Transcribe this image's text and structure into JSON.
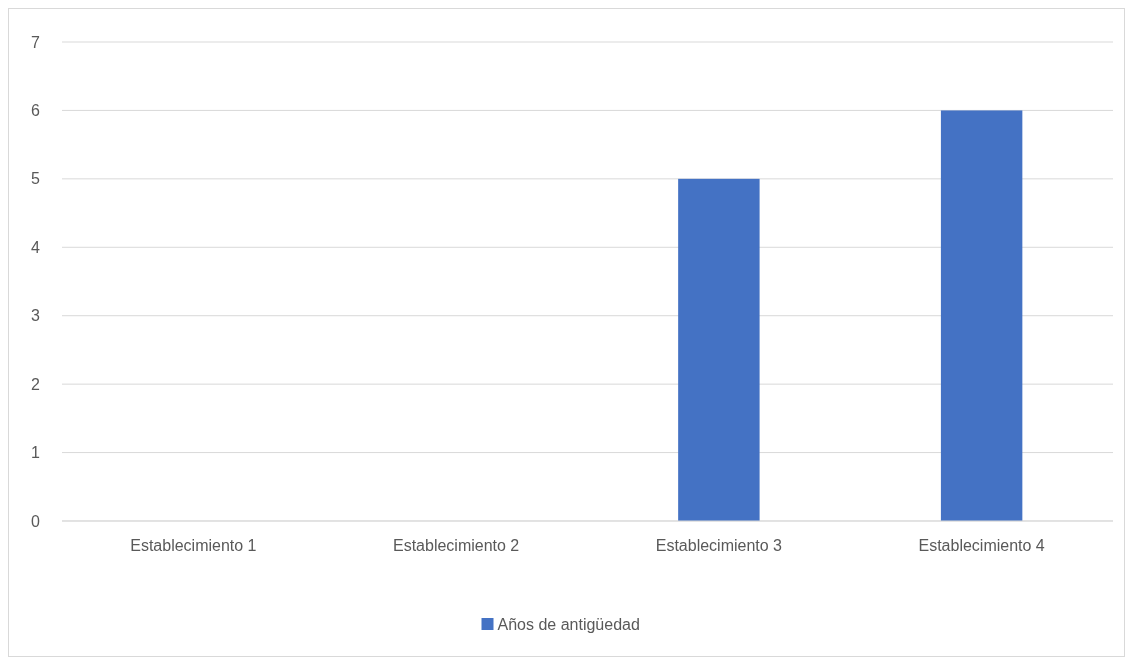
{
  "chart_data": {
    "type": "bar",
    "categories": [
      "Establecimiento 1",
      "Establecimiento 2",
      "Establecimiento 3",
      "Establecimiento 4"
    ],
    "series": [
      {
        "name": "Años de antigüedad",
        "color": "#4472c4",
        "values": [
          0,
          0,
          5,
          6
        ]
      }
    ],
    "ylim": [
      0,
      7
    ],
    "yticks": [
      0,
      1,
      2,
      3,
      4,
      5,
      6,
      7
    ],
    "grid": "y",
    "legend": "bottom"
  }
}
